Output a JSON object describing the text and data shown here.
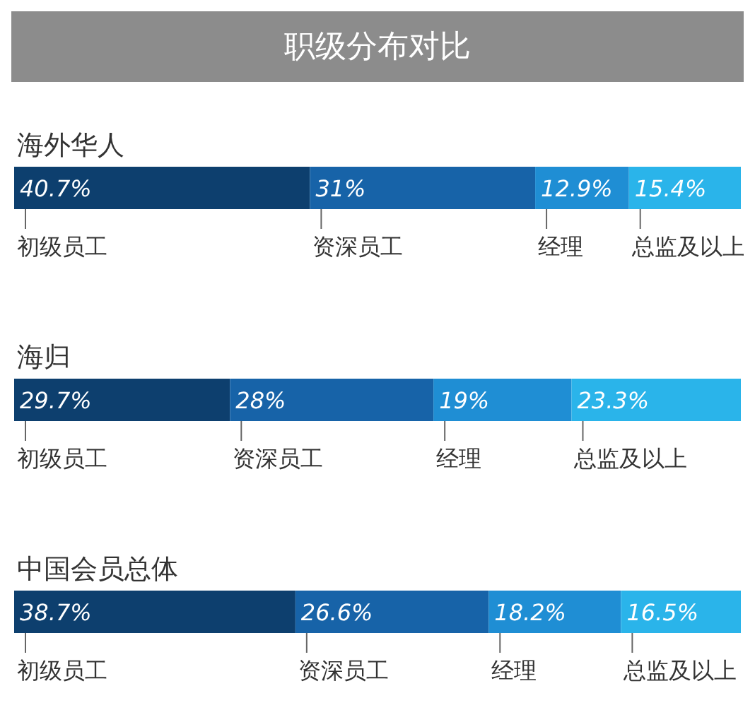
{
  "chart_data": {
    "type": "bar",
    "title": "职级分布对比",
    "orientation": "horizontal",
    "stacked": true,
    "categories": [
      "海外华人",
      "海归",
      "中国会员总体"
    ],
    "xlim": [
      0,
      100
    ],
    "series": [
      {
        "name": "初级员工",
        "color": "#0d3f6e",
        "values": [
          40.7,
          29.7,
          38.7
        ],
        "value_labels": [
          "40.7%",
          "29.7%",
          "38.7%"
        ]
      },
      {
        "name": "资深员工",
        "color": "#1763a8",
        "values": [
          31,
          28,
          26.6
        ],
        "value_labels": [
          "31%",
          "28%",
          "26.6%"
        ]
      },
      {
        "name": "经理",
        "color": "#1f8ed4",
        "values": [
          12.9,
          19,
          18.2
        ],
        "value_labels": [
          "12.9%",
          "19%",
          "18.2%"
        ]
      },
      {
        "name": "总监及以上",
        "color": "#2ab4ea",
        "values": [
          15.4,
          23.3,
          16.5
        ],
        "value_labels": [
          "15.4%",
          "23.3%",
          "16.5%"
        ]
      }
    ]
  }
}
